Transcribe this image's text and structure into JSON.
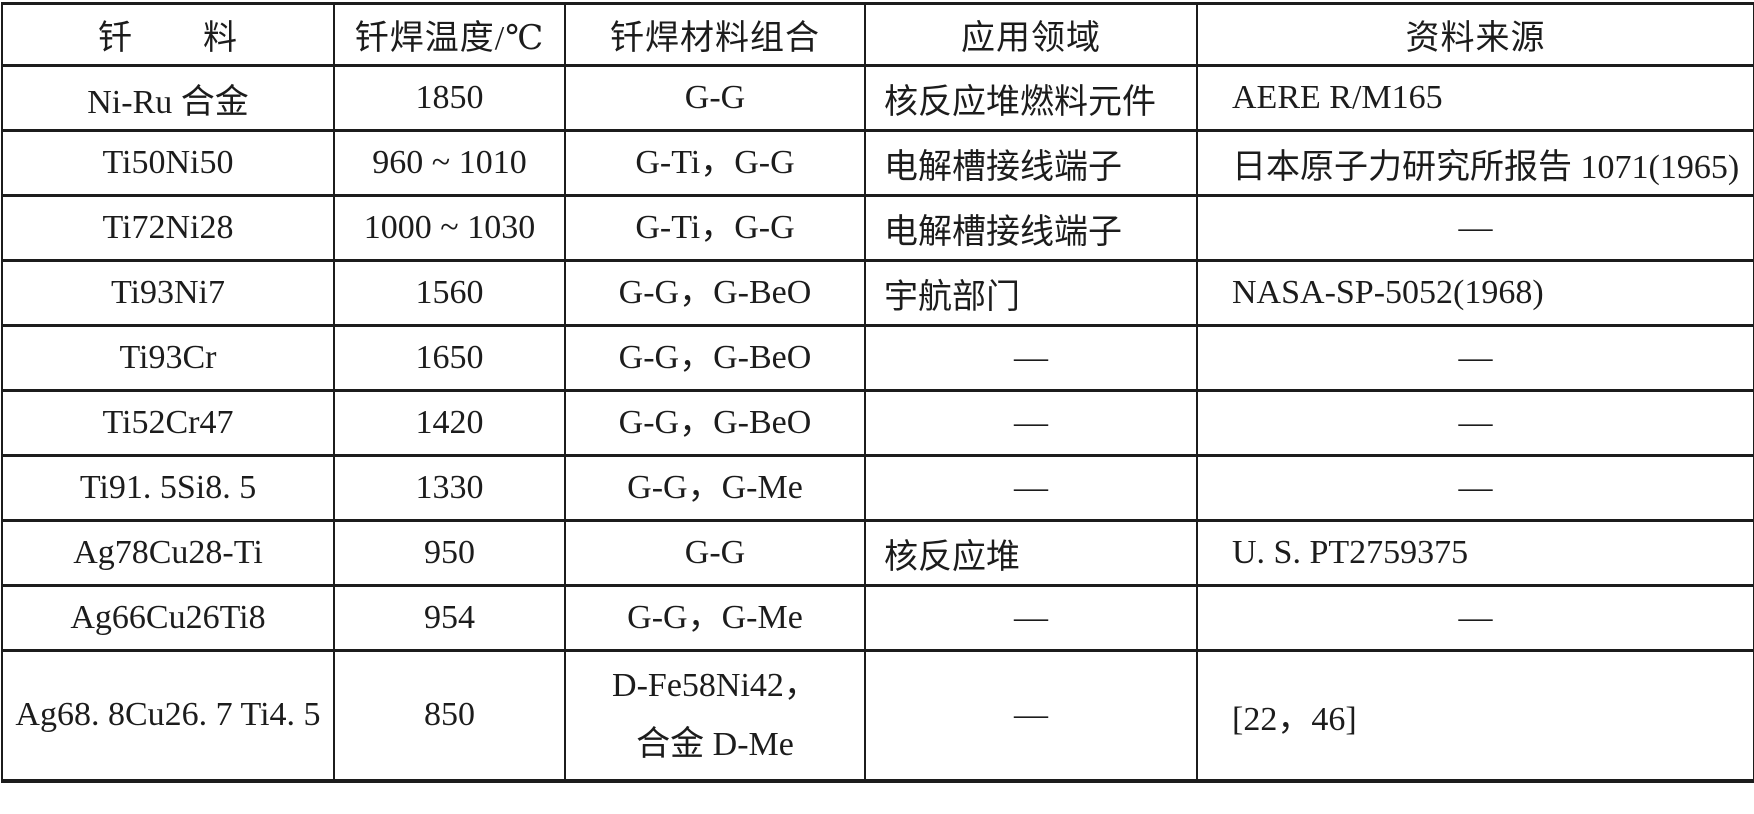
{
  "page": {
    "background_color": "#ffffff",
    "ink_color": "#1c1c1c"
  },
  "table": {
    "headers": [
      "钎　　料",
      "钎焊温度/℃",
      "钎焊材料组合",
      "应用领域",
      "资料来源"
    ],
    "rows": [
      [
        "Ni-Ru 合金",
        "1850",
        "G-G",
        "核反应堆燃料元件",
        "AERE R/M165"
      ],
      [
        "Ti50Ni50",
        "960 ~ 1010",
        "G-Ti，G-G",
        "电解槽接线端子",
        "日本原子力研究所报告 1071(1965)"
      ],
      [
        "Ti72Ni28",
        "1000 ~ 1030",
        "G-Ti，G-G",
        "电解槽接线端子",
        "—"
      ],
      [
        "Ti93Ni7",
        "1560",
        "G-G，G-BeO",
        "宇航部门",
        "NASA-SP-5052(1968)"
      ],
      [
        "Ti93Cr",
        "1650",
        "G-G，G-BeO",
        "—",
        "—"
      ],
      [
        "Ti52Cr47",
        "1420",
        "G-G，G-BeO",
        "—",
        "—"
      ],
      [
        "Ti91. 5Si8. 5",
        "1330",
        "G-G，G-Me",
        "—",
        "—"
      ],
      [
        "Ag78Cu28-Ti",
        "950",
        "G-G",
        "核反应堆",
        "U. S. PT2759375"
      ],
      [
        "Ag66Cu26Ti8",
        "954",
        "G-G，G-Me",
        "—",
        "—"
      ],
      [
        "Ag68. 8Cu26. 7 Ti4. 5",
        "850",
        "D-Fe58Ni42，\n合金 D-Me",
        "—",
        "[22，46]"
      ]
    ]
  }
}
